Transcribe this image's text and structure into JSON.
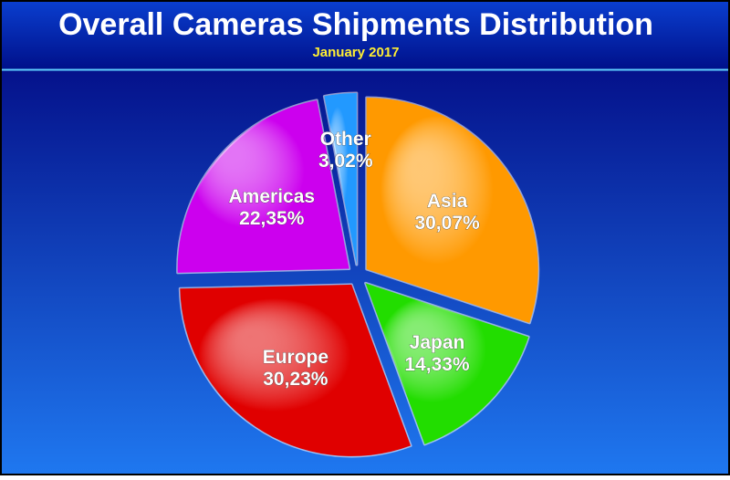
{
  "chart_data": {
    "type": "pie",
    "title": "Overall Cameras Shipments Distribution",
    "subtitle": "January 2017",
    "categories": [
      "Asia",
      "Japan",
      "Europe",
      "Americas",
      "Other"
    ],
    "values": [
      30.07,
      14.33,
      30.23,
      22.35,
      3.02
    ],
    "value_labels": [
      "30,07%",
      "14,33%",
      "30,23%",
      "22,35%",
      "3,02%"
    ],
    "colors": [
      "#ff9900",
      "#22dd00",
      "#e00000",
      "#cc00ee",
      "#2299ff"
    ]
  }
}
